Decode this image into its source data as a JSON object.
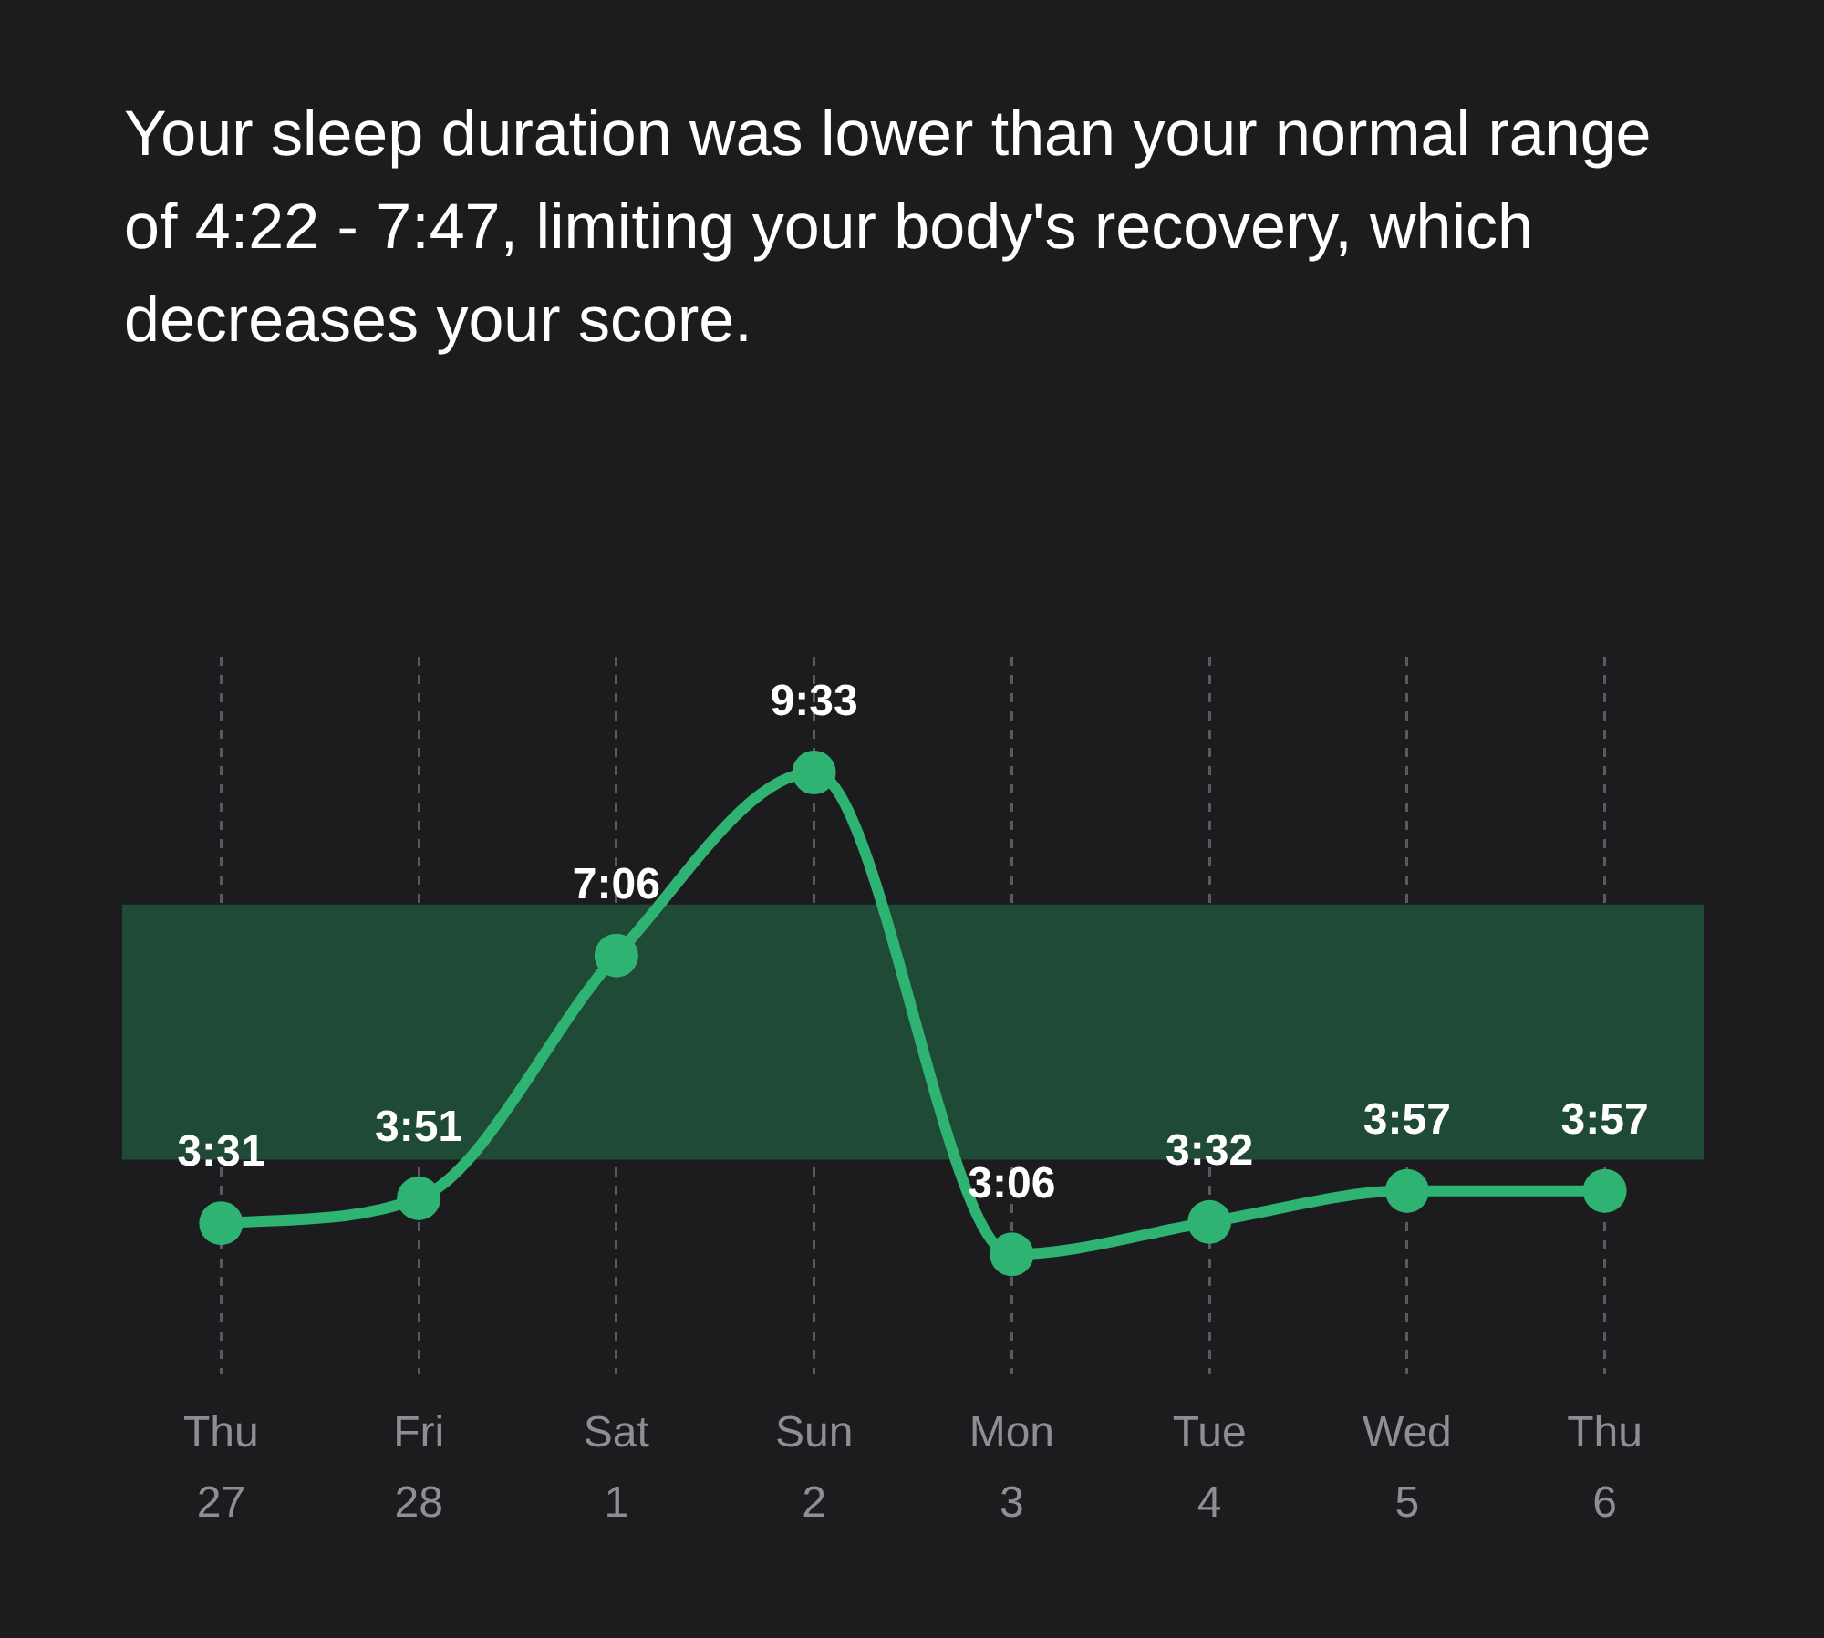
{
  "chart_data": {
    "type": "line",
    "title": "Your sleep duration was lower than your normal range of 4:22 - 7:47, limiting your body's recovery, which decreases your score.",
    "categories": [
      "Thu\n27",
      "Fri\n28",
      "Sat\n1",
      "Sun\n2",
      "Mon\n3",
      "Tue\n4",
      "Wed\n5",
      "Thu\n6"
    ],
    "series": [
      {
        "color": "#2fb373",
        "values": [
          3.5167,
          3.85,
          7.1,
          9.55,
          3.1,
          3.5333,
          3.95,
          3.95
        ],
        "value_labels": [
          "3:31",
          "3:51",
          "7:06",
          "9:33",
          "3:06",
          "3:32",
          "3:57",
          "3:57"
        ]
      }
    ],
    "ylim": [
      1.5,
      11.1
    ],
    "tick_labels": "x",
    "grid": "x",
    "marker": "circle",
    "line_style": "solid",
    "bands": [
      {
        "axis": "y",
        "from": 4.3667,
        "to": 7.7833,
        "color": "#1f4a36"
      }
    ]
  }
}
